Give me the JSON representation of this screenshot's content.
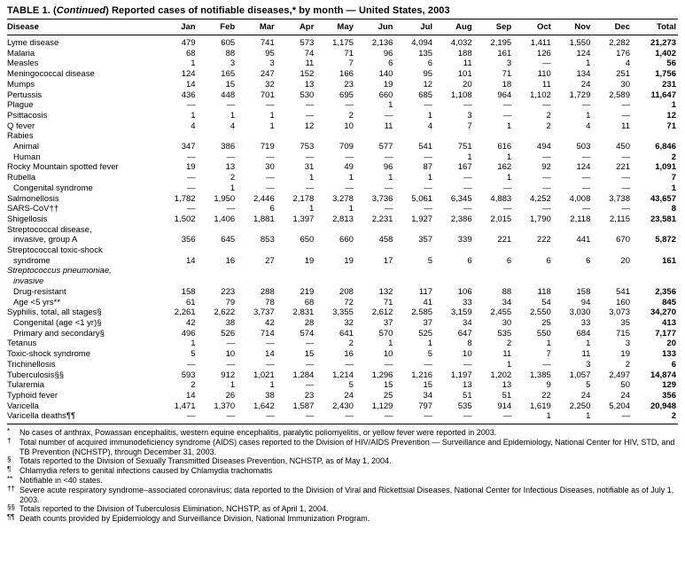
{
  "title": {
    "part1": "TABLE 1. (",
    "continued": "Continued",
    "part2": ") Reported cases of notifiable diseases,* by month — United States, 2003"
  },
  "table": {
    "columns": [
      "Disease",
      "Jan",
      "Feb",
      "Mar",
      "Apr",
      "May",
      "Jun",
      "Jul",
      "Aug",
      "Sep",
      "Oct",
      "Nov",
      "Dec",
      "Total"
    ],
    "rows": [
      {
        "label": "Lyme disease",
        "indent": 0,
        "italic": false,
        "values": [
          "479",
          "605",
          "741",
          "573",
          "1,175",
          "2,136",
          "4,094",
          "4,032",
          "2,195",
          "1,411",
          "1,550",
          "2,282",
          "21,273"
        ]
      },
      {
        "label": "Malaria",
        "indent": 0,
        "italic": false,
        "values": [
          "68",
          "88",
          "95",
          "74",
          "71",
          "96",
          "135",
          "188",
          "161",
          "126",
          "124",
          "176",
          "1,402"
        ]
      },
      {
        "label": "Measles",
        "indent": 0,
        "italic": false,
        "values": [
          "1",
          "3",
          "3",
          "11",
          "7",
          "6",
          "6",
          "11",
          "3",
          "—",
          "1",
          "4",
          "56"
        ]
      },
      {
        "label": "Meningococcal disease",
        "indent": 0,
        "italic": false,
        "values": [
          "124",
          "165",
          "247",
          "152",
          "166",
          "140",
          "95",
          "101",
          "71",
          "110",
          "134",
          "251",
          "1,756"
        ]
      },
      {
        "label": "Mumps",
        "indent": 0,
        "italic": false,
        "values": [
          "14",
          "15",
          "32",
          "13",
          "23",
          "19",
          "12",
          "20",
          "18",
          "11",
          "24",
          "30",
          "231"
        ]
      },
      {
        "label": "Pertussis",
        "indent": 0,
        "italic": false,
        "values": [
          "436",
          "448",
          "701",
          "530",
          "695",
          "660",
          "685",
          "1,108",
          "964",
          "1,102",
          "1,729",
          "2,589",
          "11,647"
        ]
      },
      {
        "label": "Plague",
        "indent": 0,
        "italic": false,
        "values": [
          "—",
          "—",
          "—",
          "—",
          "—",
          "1",
          "—",
          "—",
          "—",
          "—",
          "—",
          "—",
          "1"
        ]
      },
      {
        "label": "Psittacosis",
        "indent": 0,
        "italic": false,
        "values": [
          "1",
          "1",
          "1",
          "—",
          "2",
          "—",
          "1",
          "3",
          "—",
          "2",
          "1",
          "—",
          "12"
        ]
      },
      {
        "label": "Q fever",
        "indent": 0,
        "italic": false,
        "values": [
          "4",
          "4",
          "1",
          "12",
          "10",
          "11",
          "4",
          "7",
          "1",
          "2",
          "4",
          "11",
          "71"
        ]
      },
      {
        "label": "Rabies",
        "indent": 0,
        "italic": false,
        "values": []
      },
      {
        "label": "Animal",
        "indent": 1,
        "italic": false,
        "values": [
          "347",
          "386",
          "719",
          "753",
          "709",
          "577",
          "541",
          "751",
          "616",
          "494",
          "503",
          "450",
          "6,846"
        ]
      },
      {
        "label": "Human",
        "indent": 1,
        "italic": false,
        "values": [
          "—",
          "—",
          "—",
          "—",
          "—",
          "—",
          "—",
          "1",
          "1",
          "—",
          "—",
          "—",
          "2"
        ]
      },
      {
        "label": "Rocky Mountain spotted fever",
        "indent": 0,
        "italic": false,
        "values": [
          "19",
          "13",
          "30",
          "31",
          "49",
          "96",
          "87",
          "167",
          "162",
          "92",
          "124",
          "221",
          "1,091"
        ]
      },
      {
        "label": "Rubella",
        "indent": 0,
        "italic": false,
        "values": [
          "—",
          "2",
          "—",
          "1",
          "1",
          "1",
          "1",
          "—",
          "1",
          "—",
          "—",
          "—",
          "7"
        ]
      },
      {
        "label": "Congenital syndrome",
        "indent": 1,
        "italic": false,
        "values": [
          "—",
          "1",
          "—",
          "—",
          "—",
          "—",
          "—",
          "—",
          "—",
          "—",
          "—",
          "—",
          "1"
        ]
      },
      {
        "label": "Salmonellosis",
        "indent": 0,
        "italic": false,
        "values": [
          "1,782",
          "1,950",
          "2,446",
          "2,178",
          "3,278",
          "3,736",
          "5,061",
          "6,345",
          "4,883",
          "4,252",
          "4,008",
          "3,738",
          "43,657"
        ]
      },
      {
        "label": "SARS-CoV††",
        "indent": 0,
        "italic": false,
        "values": [
          "—",
          "—",
          "6",
          "1",
          "1",
          "—",
          "—",
          "—",
          "—",
          "—",
          "—",
          "—",
          "8"
        ]
      },
      {
        "label": "Shigellosis",
        "indent": 0,
        "italic": false,
        "values": [
          "1,502",
          "1,406",
          "1,881",
          "1,397",
          "2,813",
          "2,231",
          "1,927",
          "2,386",
          "2,015",
          "1,790",
          "2,118",
          "2,115",
          "23,581"
        ]
      },
      {
        "label": "Streptococcal disease,\ninvasive, group A",
        "indent": 0,
        "italic": false,
        "values": [
          "356",
          "645",
          "853",
          "650",
          "660",
          "458",
          "357",
          "339",
          "221",
          "222",
          "441",
          "670",
          "5,872"
        ]
      },
      {
        "label": "Streptococcal toxic-shock\nsyndrome",
        "indent": 0,
        "italic": false,
        "values": [
          "14",
          "16",
          "27",
          "19",
          "19",
          "17",
          "5",
          "6",
          "6",
          "6",
          "6",
          "20",
          "161"
        ]
      },
      {
        "label": "Streptococcus pneumoniae,\ninvasive",
        "indent": 0,
        "italic": true,
        "values": []
      },
      {
        "label": "Drug-resistant",
        "indent": 1,
        "italic": false,
        "values": [
          "158",
          "223",
          "288",
          "219",
          "208",
          "132",
          "117",
          "106",
          "88",
          "118",
          "158",
          "541",
          "2,356"
        ]
      },
      {
        "label": "Age <5 yrs**",
        "indent": 1,
        "italic": false,
        "values": [
          "61",
          "79",
          "78",
          "68",
          "72",
          "71",
          "41",
          "33",
          "34",
          "54",
          "94",
          "160",
          "845"
        ]
      },
      {
        "label": "Syphilis, total, all stages§",
        "indent": 0,
        "italic": false,
        "values": [
          "2,261",
          "2,622",
          "3,737",
          "2,831",
          "3,355",
          "2,612",
          "2,585",
          "3,159",
          "2,455",
          "2,550",
          "3,030",
          "3,073",
          "34,270"
        ]
      },
      {
        "label": "Congenital (age <1 yr)§",
        "indent": 1,
        "italic": false,
        "values": [
          "42",
          "38",
          "42",
          "28",
          "32",
          "37",
          "37",
          "34",
          "30",
          "25",
          "33",
          "35",
          "413"
        ]
      },
      {
        "label": "Primary and secondary§",
        "indent": 1,
        "italic": false,
        "values": [
          "496",
          "526",
          "714",
          "574",
          "641",
          "570",
          "525",
          "647",
          "535",
          "550",
          "684",
          "715",
          "7,177"
        ]
      },
      {
        "label": "Tetanus",
        "indent": 0,
        "italic": false,
        "values": [
          "1",
          "—",
          "—",
          "—",
          "2",
          "1",
          "1",
          "8",
          "2",
          "1",
          "1",
          "3",
          "20"
        ]
      },
      {
        "label": "Toxic-shock syndrome",
        "indent": 0,
        "italic": false,
        "values": [
          "5",
          "10",
          "14",
          "15",
          "16",
          "10",
          "5",
          "10",
          "11",
          "7",
          "11",
          "19",
          "133"
        ]
      },
      {
        "label": "Trichinellosis",
        "indent": 0,
        "italic": false,
        "values": [
          "—",
          "—",
          "—",
          "—",
          "—",
          "—",
          "—",
          "—",
          "1",
          "—",
          "3",
          "2",
          "6"
        ]
      },
      {
        "label": "Tuberculosis§§",
        "indent": 0,
        "italic": false,
        "values": [
          "593",
          "912",
          "1,021",
          "1,284",
          "1,214",
          "1,296",
          "1,216",
          "1,197",
          "1,202",
          "1,385",
          "1,057",
          "2,497",
          "14,874"
        ]
      },
      {
        "label": "Tularemia",
        "indent": 0,
        "italic": false,
        "values": [
          "2",
          "1",
          "1",
          "—",
          "5",
          "15",
          "15",
          "13",
          "13",
          "9",
          "5",
          "50",
          "129"
        ]
      },
      {
        "label": "Typhoid fever",
        "indent": 0,
        "italic": false,
        "values": [
          "14",
          "26",
          "38",
          "23",
          "24",
          "25",
          "34",
          "51",
          "51",
          "22",
          "24",
          "24",
          "356"
        ]
      },
      {
        "label": "Varicella",
        "indent": 0,
        "italic": false,
        "values": [
          "1,471",
          "1,370",
          "1,642",
          "1,587",
          "2,430",
          "1,129",
          "797",
          "535",
          "914",
          "1,619",
          "2,250",
          "5,204",
          "20,948"
        ]
      },
      {
        "label": "Varicella deaths¶¶",
        "indent": 0,
        "italic": false,
        "values": [
          "—",
          "—",
          "—",
          "—",
          "—",
          "—",
          "—",
          "—",
          "—",
          "1",
          "1",
          "—",
          "2"
        ]
      }
    ]
  },
  "footnotes": [
    {
      "marker": "*",
      "text": "No cases of anthrax, Powassan encephalitis, western equine encephalitis, paralytic poliomyelitis, or yellow fever were reported in 2003."
    },
    {
      "marker": "†",
      "text": "Total number of acquired immunodeficiency syndrome (AIDS) cases reported to the Division of HIV/AIDS Prevention — Surveillance and Epidemiology, National Center for HIV, STD, and TB Prevention (NCHSTP), through December 31, 2003."
    },
    {
      "marker": "§",
      "text": "Totals reported to the Division of Sexually Transmitted Diseases Prevention, NCHSTP, as of May 1, 2004."
    },
    {
      "marker": "¶",
      "text": "Chlamydia refers to genital infections caused by Chlamydia trachomatis"
    },
    {
      "marker": "**",
      "text": "Notifiable in <40 states."
    },
    {
      "marker": "††",
      "text": "Severe acute respiratory syndrome–associated coronavirus; data reported to the Division of Viral and Rickettsial Diseases, National Center for Infectious Diseases, notifiable as of July 1, 2003."
    },
    {
      "marker": "§§",
      "text": "Totals reported to the Division of Tuberculosis Elimination, NCHSTP, as of April 1, 2004."
    },
    {
      "marker": "¶¶",
      "text": "Death counts provided by Epidemiology and Surveillance Division, National Immunization Program."
    }
  ]
}
